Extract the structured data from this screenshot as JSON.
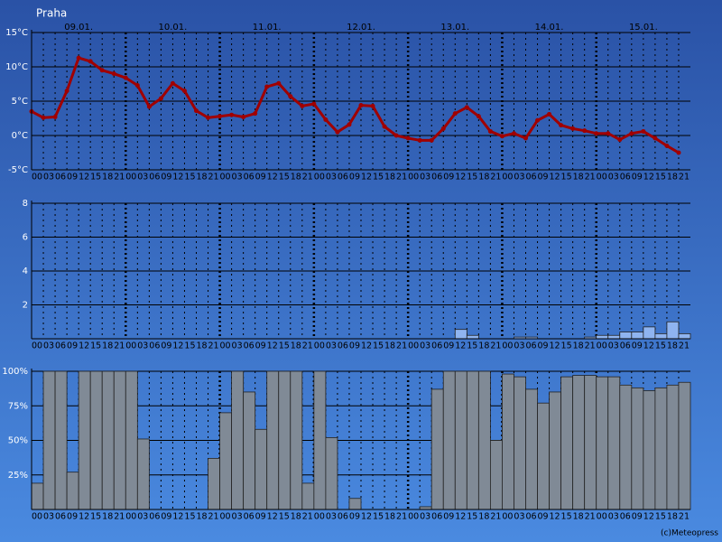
{
  "credit": "(c)Meteopress",
  "chart_data": [
    {
      "type": "line",
      "title": "Praha",
      "day_labels": [
        "09.01.",
        "10.01.",
        "11.01.",
        "12.01.",
        "13.01.",
        "14.01.",
        "15.01."
      ],
      "categories": [
        "00",
        "03",
        "06",
        "09",
        "12",
        "15",
        "18",
        "21",
        "00",
        "03",
        "06",
        "09",
        "12",
        "15",
        "18",
        "21",
        "00",
        "03",
        "06",
        "09",
        "12",
        "15",
        "18",
        "21",
        "00",
        "03",
        "06",
        "09",
        "12",
        "15",
        "18",
        "21",
        "00",
        "03",
        "06",
        "09",
        "12",
        "15",
        "18",
        "21",
        "00",
        "03",
        "06",
        "09",
        "12",
        "15",
        "18",
        "21",
        "00",
        "03",
        "06",
        "09",
        "12",
        "15",
        "18",
        "21"
      ],
      "values": [
        3.5,
        2.6,
        2.7,
        6.5,
        11.3,
        10.8,
        9.5,
        9.0,
        8.4,
        7.3,
        4.2,
        5.4,
        7.6,
        6.5,
        3.6,
        2.6,
        2.8,
        3.0,
        2.7,
        3.2,
        7.1,
        7.6,
        5.7,
        4.3,
        4.6,
        2.3,
        0.5,
        1.6,
        4.4,
        4.3,
        1.3,
        0.0,
        -0.4,
        -0.7,
        -0.7,
        1.0,
        3.2,
        4.1,
        2.8,
        0.6,
        -0.1,
        0.3,
        -0.4,
        2.2,
        3.1,
        1.5,
        1.0,
        0.7,
        0.3,
        0.3,
        -0.6,
        0.3,
        0.6,
        -0.4,
        -1.5,
        -2.5
      ],
      "color": "#a00000",
      "ylim": [
        -5,
        15
      ],
      "yticks": [
        {
          "value": -5,
          "label": "-5°C"
        },
        {
          "value": 0,
          "label": "0°C"
        },
        {
          "value": 5,
          "label": "5°C"
        },
        {
          "value": 10,
          "label": "10°C"
        },
        {
          "value": 15,
          "label": "15°C"
        }
      ],
      "grid": true
    },
    {
      "type": "bar",
      "categories": [
        "00",
        "03",
        "06",
        "09",
        "12",
        "15",
        "18",
        "21",
        "00",
        "03",
        "06",
        "09",
        "12",
        "15",
        "18",
        "21",
        "00",
        "03",
        "06",
        "09",
        "12",
        "15",
        "18",
        "21",
        "00",
        "03",
        "06",
        "09",
        "12",
        "15",
        "18",
        "21",
        "00",
        "03",
        "06",
        "09",
        "12",
        "15",
        "18",
        "21",
        "00",
        "03",
        "06",
        "09",
        "12",
        "15",
        "18",
        "21",
        "00",
        "03",
        "06",
        "09",
        "12",
        "15",
        "18",
        "21"
      ],
      "values": [
        0,
        0,
        0,
        0,
        0,
        0,
        0,
        0,
        0,
        0,
        0,
        0,
        0,
        0,
        0,
        0,
        0,
        0,
        0,
        0,
        0,
        0,
        0,
        0,
        0,
        0,
        0,
        0,
        0,
        0,
        0,
        0,
        0,
        0,
        0,
        0,
        0.55,
        0.2,
        0,
        0,
        0,
        0.1,
        0.1,
        0,
        0,
        0,
        0,
        0.1,
        0.2,
        0.2,
        0.4,
        0.4,
        0.7,
        0.3,
        1.0,
        0.3
      ],
      "color": "#8fb4f0",
      "ylim": [
        0,
        8
      ],
      "yticks": [
        2,
        4,
        6,
        8
      ],
      "grid": true
    },
    {
      "type": "bar",
      "categories": [
        "00",
        "03",
        "06",
        "09",
        "12",
        "15",
        "18",
        "21",
        "00",
        "03",
        "06",
        "09",
        "12",
        "15",
        "18",
        "21",
        "00",
        "03",
        "06",
        "09",
        "12",
        "15",
        "18",
        "21",
        "00",
        "03",
        "06",
        "09",
        "12",
        "15",
        "18",
        "21",
        "00",
        "03",
        "06",
        "09",
        "12",
        "15",
        "18",
        "21",
        "00",
        "03",
        "06",
        "09",
        "12",
        "15",
        "18",
        "21",
        "00",
        "03",
        "06",
        "09",
        "12",
        "15",
        "18",
        "21"
      ],
      "values": [
        19,
        100,
        100,
        27,
        100,
        100,
        100,
        100,
        100,
        51,
        0,
        0,
        0,
        0,
        0,
        37,
        70,
        100,
        85,
        58,
        100,
        100,
        100,
        19,
        100,
        52,
        0,
        8,
        0,
        0,
        0,
        0,
        0,
        2,
        87,
        100,
        100,
        100,
        100,
        50,
        98,
        96,
        87,
        77,
        85,
        96,
        97,
        97,
        96,
        96,
        90,
        88,
        86,
        88,
        90,
        92
      ],
      "color": "#808a96",
      "ylim": [
        0,
        100
      ],
      "yticks": [
        {
          "value": 25,
          "label": "25%"
        },
        {
          "value": 50,
          "label": "50%"
        },
        {
          "value": 75,
          "label": "75%"
        },
        {
          "value": 100,
          "label": "100%"
        }
      ],
      "grid": true
    }
  ]
}
